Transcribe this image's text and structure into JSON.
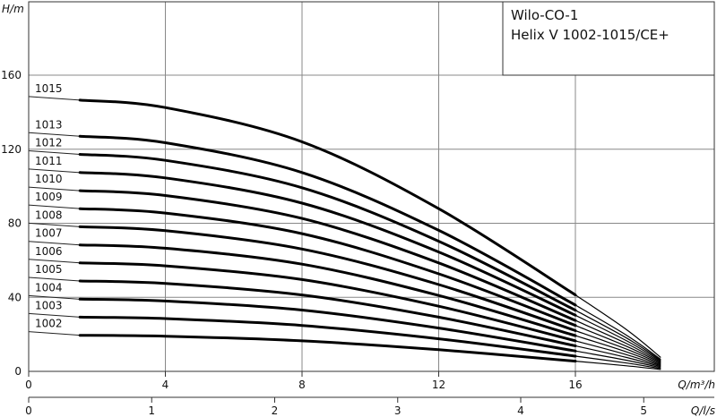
{
  "chart_data": {
    "type": "line",
    "title": [
      "Wilo-CO-1",
      "Helix V 1002-1015/CE+"
    ],
    "ylabel": "H/m",
    "xlabel": "Q/m³/h",
    "xlabel2": "Q/l/s",
    "xlim": [
      0,
      20.8
    ],
    "ylim": [
      0,
      175
    ],
    "x_ticks": [
      0,
      4,
      8,
      12,
      16
    ],
    "x_ticks2": [
      0,
      1,
      2,
      3,
      4,
      5
    ],
    "y_ticks": [
      0,
      40,
      80,
      120,
      160
    ],
    "grid": true,
    "series": [
      {
        "name": "1002",
        "x": [
          1.5,
          4,
          8,
          12,
          16,
          17.5,
          18.5
        ],
        "y": [
          19.5,
          19,
          16.5,
          11.7,
          5.5,
          3,
          1
        ]
      },
      {
        "name": "1003",
        "x": [
          1.5,
          4,
          8,
          12,
          16,
          17.5,
          18.5
        ],
        "y": [
          29.3,
          28.5,
          24.8,
          17.6,
          8.2,
          4.5,
          1.5
        ]
      },
      {
        "name": "1004",
        "x": [
          1.5,
          4,
          8,
          12,
          16,
          17.5,
          18.5
        ],
        "y": [
          39,
          38,
          33.1,
          23.4,
          11,
          6,
          2
        ]
      },
      {
        "name": "1005",
        "x": [
          1.5,
          4,
          8,
          12,
          16,
          17.5,
          18.5
        ],
        "y": [
          48.8,
          47.5,
          41.3,
          29.3,
          13.8,
          7.5,
          2.5
        ]
      },
      {
        "name": "1006",
        "x": [
          1.5,
          4,
          8,
          12,
          16,
          17.5,
          18.5
        ],
        "y": [
          58.6,
          57,
          49.6,
          35.2,
          16.5,
          9,
          3
        ]
      },
      {
        "name": "1007",
        "x": [
          1.5,
          4,
          8,
          12,
          16,
          17.5,
          18.5
        ],
        "y": [
          68.3,
          66.5,
          57.9,
          41,
          19.3,
          10.5,
          3.5
        ]
      },
      {
        "name": "1008",
        "x": [
          1.5,
          4,
          8,
          12,
          16,
          17.5,
          18.5
        ],
        "y": [
          78.1,
          76,
          66.1,
          46.9,
          22,
          12,
          4
        ]
      },
      {
        "name": "1009",
        "x": [
          1.5,
          4,
          8,
          12,
          16,
          17.5,
          18.5
        ],
        "y": [
          87.9,
          85.5,
          74.4,
          52.7,
          24.8,
          13.5,
          4.5
        ]
      },
      {
        "name": "1010",
        "x": [
          1.5,
          4,
          8,
          12,
          16,
          17.5,
          18.5
        ],
        "y": [
          97.6,
          95,
          82.6,
          58.6,
          27.5,
          15,
          5
        ]
      },
      {
        "name": "1011",
        "x": [
          1.5,
          4,
          8,
          12,
          16,
          17.5,
          18.5
        ],
        "y": [
          107.4,
          104.5,
          90.9,
          64.5,
          30.3,
          16.5,
          5.5
        ]
      },
      {
        "name": "1012",
        "x": [
          1.5,
          4,
          8,
          12,
          16,
          17.5,
          18.5
        ],
        "y": [
          117.2,
          114,
          99.2,
          70.3,
          33,
          18,
          6
        ]
      },
      {
        "name": "1013",
        "x": [
          1.5,
          4,
          8,
          12,
          16,
          17.5,
          18.5
        ],
        "y": [
          127,
          123.5,
          107.4,
          76.2,
          35.8,
          19.5,
          6.5
        ]
      },
      {
        "name": "1015",
        "x": [
          1.5,
          4,
          8,
          12,
          16,
          17.5,
          18.5
        ],
        "y": [
          146.5,
          142.5,
          124,
          87.9,
          41.3,
          22.5,
          7.5
        ]
      }
    ]
  }
}
